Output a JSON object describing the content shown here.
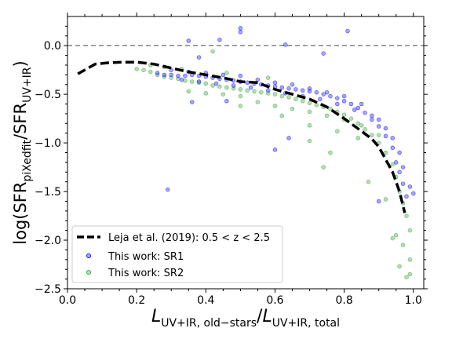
{
  "chart_data": {
    "type": "scatter",
    "xlabel_main": "L",
    "xlabel_sub1": "UV+IR, old−stars",
    "xlabel_sep": "/",
    "xlabel_main2": "L",
    "xlabel_sub2": "UV+IR, total",
    "ylabel_pre": "log(SFR",
    "ylabel_sub1": "piXedfit",
    "ylabel_mid": "/SFR",
    "ylabel_sub2": "UV+IR",
    "ylabel_post": ")",
    "xlim": [
      0.0,
      1.03
    ],
    "ylim": [
      -2.5,
      0.3
    ],
    "x_ticks": [
      0.0,
      0.2,
      0.4,
      0.6,
      0.8,
      1.0
    ],
    "x_tick_labels": [
      "0.0",
      "0.2",
      "0.4",
      "0.6",
      "0.8",
      "1.0"
    ],
    "y_ticks": [
      0.0,
      -0.5,
      -1.0,
      -1.5,
      -2.0,
      -2.5
    ],
    "y_tick_labels": [
      "0.0",
      "−0.5",
      "−1.0",
      "−1.5",
      "−2.0",
      "−2.5"
    ],
    "reference_line": {
      "y": 0.0,
      "style": "dashed",
      "color": "#808080"
    },
    "legend": {
      "placement": "lower-left",
      "entries": [
        {
          "label": "Leja et al. (2019): 0.5 < z < 2.5",
          "kind": "line"
        },
        {
          "label": "This work: SR1",
          "kind": "marker"
        },
        {
          "label": "This work: SR2",
          "kind": "marker"
        }
      ]
    },
    "series": [
      {
        "name": "Leja et al. (2019): 0.5 < z < 2.5",
        "kind": "line",
        "color": "#000000",
        "style": "dashed",
        "x": [
          0.03,
          0.08,
          0.12,
          0.16,
          0.2,
          0.25,
          0.3,
          0.35,
          0.4,
          0.45,
          0.5,
          0.55,
          0.6,
          0.65,
          0.7,
          0.75,
          0.8,
          0.85,
          0.88,
          0.9,
          0.92,
          0.94,
          0.96,
          0.975
        ],
        "y": [
          -0.29,
          -0.19,
          -0.175,
          -0.17,
          -0.17,
          -0.19,
          -0.23,
          -0.27,
          -0.3,
          -0.33,
          -0.37,
          -0.38,
          -0.45,
          -0.5,
          -0.55,
          -0.63,
          -0.75,
          -0.88,
          -0.96,
          -1.04,
          -1.17,
          -1.3,
          -1.5,
          -1.72
        ]
      },
      {
        "name": "This work: SR1",
        "kind": "scatter",
        "color": "#0000ff",
        "points": [
          [
            0.26,
            -0.28
          ],
          [
            0.28,
            -0.3
          ],
          [
            0.3,
            -0.3
          ],
          [
            0.32,
            -0.31
          ],
          [
            0.34,
            -0.31
          ],
          [
            0.36,
            -0.3
          ],
          [
            0.38,
            -0.31
          ],
          [
            0.4,
            -0.32
          ],
          [
            0.42,
            -0.33
          ],
          [
            0.44,
            -0.34
          ],
          [
            0.46,
            -0.35
          ],
          [
            0.48,
            -0.36
          ],
          [
            0.5,
            -0.37
          ],
          [
            0.52,
            -0.38
          ],
          [
            0.54,
            -0.39
          ],
          [
            0.56,
            -0.4
          ],
          [
            0.58,
            -0.41
          ],
          [
            0.6,
            -0.42
          ],
          [
            0.62,
            -0.43
          ],
          [
            0.64,
            -0.44
          ],
          [
            0.66,
            -0.45
          ],
          [
            0.68,
            -0.46
          ],
          [
            0.7,
            -0.47
          ],
          [
            0.72,
            -0.48
          ],
          [
            0.74,
            -0.5
          ],
          [
            0.76,
            -0.52
          ],
          [
            0.78,
            -0.54
          ],
          [
            0.8,
            -0.57
          ],
          [
            0.82,
            -0.6
          ],
          [
            0.84,
            -0.64
          ],
          [
            0.86,
            -0.69
          ],
          [
            0.88,
            -0.76
          ],
          [
            0.9,
            -0.83
          ],
          [
            0.92,
            -0.93
          ],
          [
            0.94,
            -1.05
          ],
          [
            0.95,
            -1.2
          ],
          [
            0.96,
            -1.3
          ],
          [
            0.97,
            -1.42
          ],
          [
            0.98,
            -1.55
          ],
          [
            0.3,
            -0.25
          ],
          [
            0.35,
            -0.27
          ],
          [
            0.4,
            -0.28
          ],
          [
            0.45,
            -0.3
          ],
          [
            0.5,
            -0.31
          ],
          [
            0.55,
            -0.35
          ],
          [
            0.6,
            -0.38
          ],
          [
            0.65,
            -0.4
          ],
          [
            0.7,
            -0.44
          ],
          [
            0.75,
            -0.48
          ],
          [
            0.8,
            -0.52
          ],
          [
            0.85,
            -0.6
          ],
          [
            0.9,
            -0.76
          ],
          [
            0.33,
            -0.35
          ],
          [
            0.38,
            -0.37
          ],
          [
            0.43,
            -0.39
          ],
          [
            0.48,
            -0.41
          ],
          [
            0.53,
            -0.43
          ],
          [
            0.58,
            -0.46
          ],
          [
            0.63,
            -0.49
          ],
          [
            0.68,
            -0.52
          ],
          [
            0.73,
            -0.55
          ],
          [
            0.78,
            -0.6
          ],
          [
            0.83,
            -0.66
          ],
          [
            0.88,
            -0.72
          ],
          [
            0.92,
            -0.85
          ],
          [
            0.94,
            -0.95
          ],
          [
            0.96,
            -1.1
          ],
          [
            0.97,
            -1.25
          ],
          [
            0.99,
            -1.45
          ],
          [
            1.0,
            -1.52
          ],
          [
            0.35,
            0.05
          ],
          [
            0.5,
            0.18
          ],
          [
            0.5,
            0.14
          ],
          [
            0.44,
            0.06
          ],
          [
            0.63,
            0.01
          ],
          [
            0.81,
            0.15
          ],
          [
            0.74,
            -0.08
          ],
          [
            0.38,
            -0.12
          ],
          [
            0.29,
            -1.48
          ],
          [
            0.6,
            -1.07
          ],
          [
            0.64,
            -0.95
          ],
          [
            0.9,
            -1.6
          ],
          [
            0.36,
            -0.58
          ],
          [
            0.46,
            -0.57
          ]
        ]
      },
      {
        "name": "This work: SR2",
        "kind": "scatter",
        "color": "#2ca02c",
        "points": [
          [
            0.2,
            -0.24
          ],
          [
            0.22,
            -0.25
          ],
          [
            0.24,
            -0.27
          ],
          [
            0.26,
            -0.3
          ],
          [
            0.28,
            -0.32
          ],
          [
            0.3,
            -0.33
          ],
          [
            0.32,
            -0.34
          ],
          [
            0.34,
            -0.36
          ],
          [
            0.36,
            -0.37
          ],
          [
            0.38,
            -0.38
          ],
          [
            0.4,
            -0.39
          ],
          [
            0.42,
            -0.41
          ],
          [
            0.44,
            -0.42
          ],
          [
            0.46,
            -0.43
          ],
          [
            0.48,
            -0.44
          ],
          [
            0.5,
            -0.45
          ],
          [
            0.52,
            -0.46
          ],
          [
            0.54,
            -0.47
          ],
          [
            0.56,
            -0.48
          ],
          [
            0.58,
            -0.49
          ],
          [
            0.6,
            -0.5
          ],
          [
            0.62,
            -0.52
          ],
          [
            0.64,
            -0.53
          ],
          [
            0.66,
            -0.55
          ],
          [
            0.68,
            -0.57
          ],
          [
            0.7,
            -0.59
          ],
          [
            0.72,
            -0.61
          ],
          [
            0.74,
            -0.63
          ],
          [
            0.76,
            -0.65
          ],
          [
            0.78,
            -0.68
          ],
          [
            0.8,
            -0.71
          ],
          [
            0.82,
            -0.75
          ],
          [
            0.84,
            -0.8
          ],
          [
            0.86,
            -0.86
          ],
          [
            0.88,
            -0.92
          ],
          [
            0.9,
            -1.0
          ],
          [
            0.92,
            -1.1
          ],
          [
            0.94,
            -1.22
          ],
          [
            0.95,
            -1.35
          ],
          [
            0.96,
            -1.5
          ],
          [
            0.97,
            -1.62
          ],
          [
            0.98,
            -1.75
          ],
          [
            0.99,
            -1.9
          ],
          [
            0.95,
            -1.95
          ],
          [
            0.97,
            -2.05
          ],
          [
            0.99,
            -2.2
          ],
          [
            0.98,
            -2.38
          ],
          [
            0.99,
            -2.35
          ],
          [
            0.96,
            -2.27
          ],
          [
            0.94,
            -1.98
          ],
          [
            0.35,
            -0.47
          ],
          [
            0.4,
            -0.49
          ],
          [
            0.45,
            -0.5
          ],
          [
            0.5,
            -0.52
          ],
          [
            0.55,
            -0.58
          ],
          [
            0.6,
            -0.62
          ],
          [
            0.65,
            -0.65
          ],
          [
            0.7,
            -0.68
          ],
          [
            0.75,
            -0.72
          ],
          [
            0.8,
            -0.76
          ],
          [
            0.85,
            -0.82
          ],
          [
            0.9,
            -0.92
          ],
          [
            0.5,
            -0.62
          ],
          [
            0.62,
            -0.72
          ],
          [
            0.7,
            -0.82
          ],
          [
            0.78,
            -0.88
          ],
          [
            0.84,
            -0.95
          ],
          [
            0.24,
            -0.2
          ],
          [
            0.28,
            -0.22
          ],
          [
            0.42,
            -0.06
          ],
          [
            0.7,
            -0.98
          ],
          [
            0.76,
            -1.1
          ],
          [
            0.74,
            -1.25
          ],
          [
            0.87,
            -1.4
          ],
          [
            0.92,
            -1.58
          ],
          [
            0.33,
            -0.24
          ],
          [
            0.46,
            -0.28
          ],
          [
            0.58,
            -0.33
          ]
        ]
      }
    ]
  }
}
